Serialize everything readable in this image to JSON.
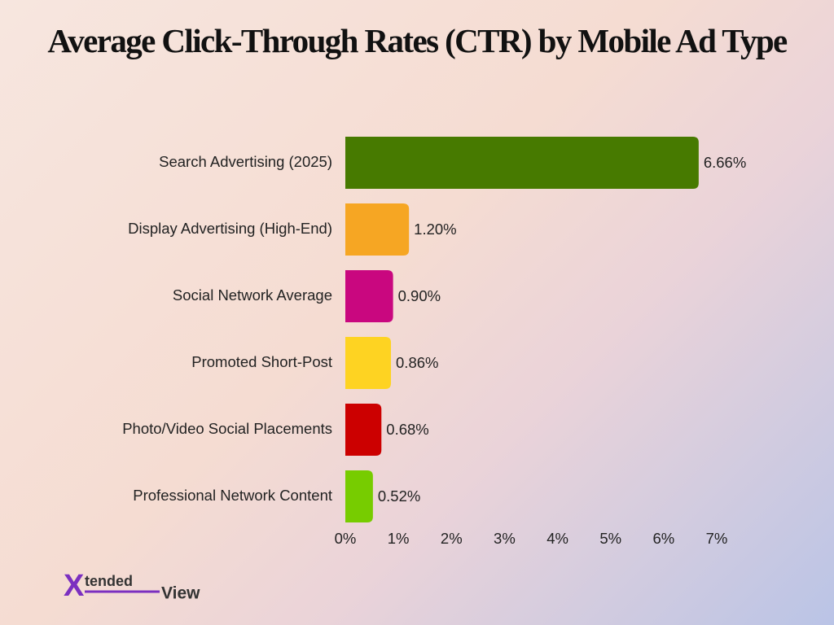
{
  "chart_data": {
    "type": "bar",
    "orientation": "horizontal",
    "title": "Average Click-Through Rates (CTR) by Mobile Ad Type",
    "categories": [
      "Search Advertising (2025)",
      "Display Advertising (High-End)",
      "Social Network Average",
      "Promoted Short-Post",
      "Photo/Video Social Placements",
      "Professional Network Content"
    ],
    "values": [
      6.66,
      1.2,
      0.9,
      0.86,
      0.68,
      0.52
    ],
    "value_labels": [
      "6.66%",
      "1.20%",
      "0.90%",
      "0.86%",
      "0.68%",
      "0.52%"
    ],
    "colors": [
      "#477a00",
      "#f6a623",
      "#c9077f",
      "#fed322",
      "#cc0000",
      "#77cc00"
    ],
    "xlim": [
      0,
      7
    ],
    "xticks": [
      {
        "value": 0,
        "label": "0%"
      },
      {
        "value": 1,
        "label": "1%"
      },
      {
        "value": 2,
        "label": "2%"
      },
      {
        "value": 3,
        "label": "3%"
      },
      {
        "value": 4,
        "label": "4%"
      },
      {
        "value": 5,
        "label": "5%"
      },
      {
        "value": 6,
        "label": "6%"
      },
      {
        "value": 7,
        "label": "7%"
      }
    ],
    "grid": false
  },
  "logo": [
    "X",
    "tended",
    "View"
  ]
}
